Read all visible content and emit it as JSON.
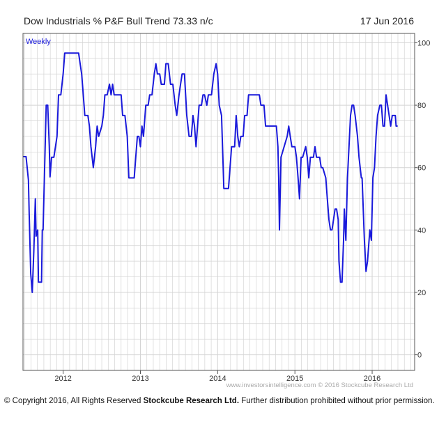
{
  "header": {
    "title": "Dow Industrials % P&F Bull Trend 73.33 n/c",
    "date": "17 Jun 2016"
  },
  "footer": {
    "watermark": "www.investorsintelligence.com © 2016 Stockcube Research Ltd",
    "copyright_pre": "© Copyright 2016, All Rights Reserved ",
    "copyright_bold": "Stockcube Research Ltd.",
    "copyright_post": " Further distribution prohibited without prior permission."
  },
  "colors": {
    "line": "#1a1adb",
    "grid": "#d4d4d4",
    "frame": "#555555",
    "label": "#1a1adb"
  },
  "chart_data": {
    "type": "line",
    "title": "Dow Industrials % P&F Bull Trend 73.33 n/c",
    "period_label": "Weekly",
    "x_tick_labels": [
      "2012",
      "2013",
      "2014",
      "2015",
      "2016"
    ],
    "y_tick_labels": [
      "0",
      "20",
      "40",
      "60",
      "80",
      "100"
    ],
    "xlim": [
      2011.48,
      2016.55
    ],
    "ylim": [
      -5,
      103
    ],
    "grid": true,
    "series": [
      {
        "values": [
          [
            2011.48,
            63.5
          ],
          [
            2011.52,
            63.5
          ],
          [
            2011.55,
            56
          ],
          [
            2011.56,
            45
          ],
          [
            2011.58,
            26
          ],
          [
            2011.6,
            20
          ],
          [
            2011.62,
            33
          ],
          [
            2011.64,
            50
          ],
          [
            2011.65,
            38
          ],
          [
            2011.67,
            40
          ],
          [
            2011.68,
            23.3
          ],
          [
            2011.72,
            23.3
          ],
          [
            2011.73,
            40
          ],
          [
            2011.74,
            40
          ],
          [
            2011.78,
            80
          ],
          [
            2011.8,
            80
          ],
          [
            2011.82,
            67
          ],
          [
            2011.83,
            57
          ],
          [
            2011.85,
            63.3
          ],
          [
            2011.88,
            63.3
          ],
          [
            2011.9,
            66.7
          ],
          [
            2011.92,
            70
          ],
          [
            2011.94,
            83.3
          ],
          [
            2011.97,
            83.3
          ],
          [
            2012.0,
            90
          ],
          [
            2012.02,
            96.7
          ],
          [
            2012.2,
            96.7
          ],
          [
            2012.22,
            93.3
          ],
          [
            2012.24,
            90
          ],
          [
            2012.26,
            83.3
          ],
          [
            2012.28,
            76.7
          ],
          [
            2012.32,
            76.7
          ],
          [
            2012.34,
            73.3
          ],
          [
            2012.36,
            66.7
          ],
          [
            2012.39,
            60
          ],
          [
            2012.42,
            66.7
          ],
          [
            2012.44,
            73.3
          ],
          [
            2012.46,
            70
          ],
          [
            2012.5,
            73.3
          ],
          [
            2012.52,
            76.7
          ],
          [
            2012.54,
            83.3
          ],
          [
            2012.57,
            83.3
          ],
          [
            2012.6,
            86.7
          ],
          [
            2012.62,
            83.3
          ],
          [
            2012.64,
            86.7
          ],
          [
            2012.66,
            83.3
          ],
          [
            2012.75,
            83.3
          ],
          [
            2012.77,
            76.7
          ],
          [
            2012.8,
            76.7
          ],
          [
            2012.83,
            70
          ],
          [
            2012.85,
            56.7
          ],
          [
            2012.92,
            56.7
          ],
          [
            2012.94,
            63.3
          ],
          [
            2012.96,
            70
          ],
          [
            2012.98,
            70
          ],
          [
            2013.0,
            66.7
          ],
          [
            2013.02,
            73.3
          ],
          [
            2013.04,
            70
          ],
          [
            2013.07,
            80
          ],
          [
            2013.1,
            80
          ],
          [
            2013.12,
            83.3
          ],
          [
            2013.15,
            83.3
          ],
          [
            2013.18,
            90
          ],
          [
            2013.2,
            93.3
          ],
          [
            2013.22,
            90
          ],
          [
            2013.25,
            90
          ],
          [
            2013.27,
            86.7
          ],
          [
            2013.31,
            86.7
          ],
          [
            2013.33,
            93.3
          ],
          [
            2013.36,
            93.3
          ],
          [
            2013.39,
            86.7
          ],
          [
            2013.42,
            86.7
          ],
          [
            2013.45,
            80
          ],
          [
            2013.47,
            76.7
          ],
          [
            2013.5,
            83.3
          ],
          [
            2013.52,
            86.7
          ],
          [
            2013.54,
            90
          ],
          [
            2013.57,
            90
          ],
          [
            2013.6,
            76.7
          ],
          [
            2013.63,
            70
          ],
          [
            2013.66,
            70
          ],
          [
            2013.68,
            76.7
          ],
          [
            2013.7,
            73.3
          ],
          [
            2013.72,
            66.7
          ],
          [
            2013.74,
            73.3
          ],
          [
            2013.76,
            80
          ],
          [
            2013.79,
            80
          ],
          [
            2013.81,
            83.3
          ],
          [
            2013.83,
            83.3
          ],
          [
            2013.86,
            80
          ],
          [
            2013.88,
            83.3
          ],
          [
            2013.92,
            83.3
          ],
          [
            2013.95,
            90
          ],
          [
            2013.98,
            93.3
          ],
          [
            2014.0,
            90
          ],
          [
            2014.02,
            80
          ],
          [
            2014.05,
            76.7
          ],
          [
            2014.08,
            53.3
          ],
          [
            2014.14,
            53.3
          ],
          [
            2014.16,
            60
          ],
          [
            2014.18,
            66.7
          ],
          [
            2014.22,
            66.7
          ],
          [
            2014.24,
            76.7
          ],
          [
            2014.26,
            70
          ],
          [
            2014.28,
            66.7
          ],
          [
            2014.3,
            70
          ],
          [
            2014.33,
            70
          ],
          [
            2014.35,
            76.7
          ],
          [
            2014.38,
            76.7
          ],
          [
            2014.4,
            83.3
          ],
          [
            2014.54,
            83.3
          ],
          [
            2014.56,
            80
          ],
          [
            2014.6,
            80
          ],
          [
            2014.62,
            73.3
          ],
          [
            2014.76,
            73.3
          ],
          [
            2014.78,
            66.7
          ],
          [
            2014.79,
            56.7
          ],
          [
            2014.8,
            40
          ],
          [
            2014.82,
            63.3
          ],
          [
            2014.86,
            66.7
          ],
          [
            2014.9,
            70
          ],
          [
            2014.92,
            73.3
          ],
          [
            2014.94,
            70
          ],
          [
            2014.96,
            66.7
          ],
          [
            2015.0,
            66.7
          ],
          [
            2015.02,
            63.3
          ],
          [
            2015.04,
            57
          ],
          [
            2015.06,
            50
          ],
          [
            2015.08,
            63.3
          ],
          [
            2015.1,
            63.3
          ],
          [
            2015.14,
            66.7
          ],
          [
            2015.16,
            63.3
          ],
          [
            2015.18,
            56.7
          ],
          [
            2015.2,
            63.3
          ],
          [
            2015.24,
            63.3
          ],
          [
            2015.26,
            66.7
          ],
          [
            2015.28,
            63.3
          ],
          [
            2015.32,
            63.3
          ],
          [
            2015.34,
            60
          ],
          [
            2015.36,
            60
          ],
          [
            2015.4,
            56.7
          ],
          [
            2015.42,
            50
          ],
          [
            2015.44,
            43.3
          ],
          [
            2015.46,
            40
          ],
          [
            2015.48,
            40
          ],
          [
            2015.5,
            43.3
          ],
          [
            2015.52,
            46.7
          ],
          [
            2015.54,
            46.7
          ],
          [
            2015.56,
            43.3
          ],
          [
            2015.57,
            30
          ],
          [
            2015.59,
            23.3
          ],
          [
            2015.61,
            23.3
          ],
          [
            2015.63,
            36.7
          ],
          [
            2015.64,
            46.7
          ],
          [
            2015.66,
            36.7
          ],
          [
            2015.68,
            56.7
          ],
          [
            2015.7,
            66.7
          ],
          [
            2015.72,
            76.7
          ],
          [
            2015.74,
            80
          ],
          [
            2015.76,
            80
          ],
          [
            2015.78,
            76.7
          ],
          [
            2015.81,
            70
          ],
          [
            2015.83,
            63.3
          ],
          [
            2015.86,
            56.7
          ],
          [
            2015.87,
            56.7
          ],
          [
            2015.9,
            36.7
          ],
          [
            2015.92,
            26.7
          ],
          [
            2015.94,
            30
          ],
          [
            2015.96,
            36.7
          ],
          [
            2015.97,
            40
          ],
          [
            2015.99,
            36.7
          ],
          [
            2016.01,
            56.7
          ],
          [
            2016.03,
            60
          ],
          [
            2016.05,
            70
          ],
          [
            2016.07,
            76.7
          ],
          [
            2016.1,
            80
          ],
          [
            2016.12,
            80
          ],
          [
            2016.14,
            73.3
          ],
          [
            2016.16,
            73.3
          ],
          [
            2016.18,
            83.3
          ],
          [
            2016.2,
            80
          ],
          [
            2016.22,
            76.7
          ],
          [
            2016.24,
            73.3
          ],
          [
            2016.26,
            76.7
          ],
          [
            2016.28,
            76.7
          ],
          [
            2016.3,
            76.7
          ],
          [
            2016.31,
            73.3
          ],
          [
            2016.33,
            73.3
          ]
        ]
      }
    ]
  }
}
